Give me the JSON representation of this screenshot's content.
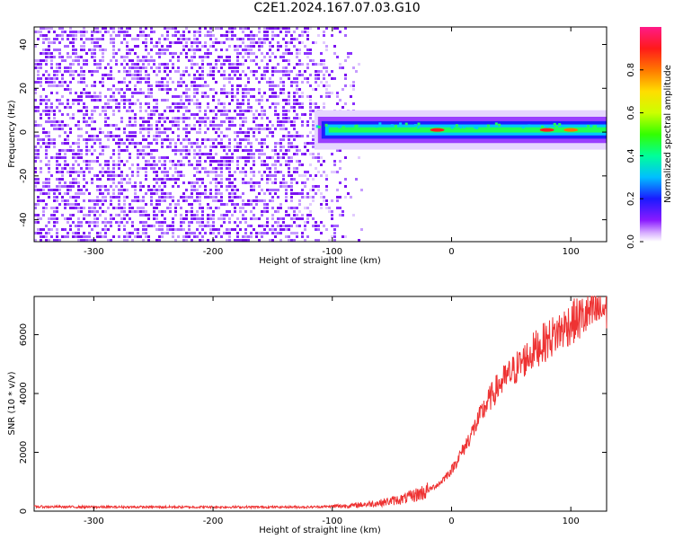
{
  "title": "C2E1.2024.167.07.03.G10",
  "chart_data": [
    {
      "type": "heatmap",
      "xlabel": "Height of straight line (km)",
      "ylabel": "Frequency (Hz)",
      "xlim": [
        -350,
        130
      ],
      "ylim": [
        -50,
        48
      ],
      "x_ticks": [
        -300,
        -200,
        -100,
        0,
        100
      ],
      "y_ticks": [
        -40,
        -20,
        0,
        20,
        40
      ],
      "grid": false,
      "colorbar": {
        "label": "Normalized spectral amplitude",
        "range": [
          0,
          1
        ],
        "ticks": [
          0.0,
          0.2,
          0.4,
          0.6,
          0.8
        ],
        "colormap": "hsv-rainbow"
      },
      "description_of_marks": {
        "noise_region_x": [
          -350,
          -75
        ],
        "tone_band_x": [
          -115,
          130
        ],
        "tone_frequency_hz": 1
      }
    },
    {
      "type": "line",
      "xlabel": "Height of straight line (km)",
      "ylabel": "SNR (10 * v/v)",
      "xlim": [
        -350,
        130
      ],
      "ylim": [
        0,
        7300
      ],
      "x_ticks": [
        -300,
        -200,
        -100,
        0,
        100
      ],
      "y_ticks": [
        0,
        2000,
        4000,
        6000
      ],
      "grid": false,
      "series": [
        {
          "color": "#ee3333",
          "x": [
            -350,
            -300,
            -250,
            -200,
            -150,
            -120,
            -100,
            -80,
            -60,
            -40,
            -30,
            -20,
            -10,
            0,
            10,
            20,
            30,
            40,
            50,
            60,
            70,
            80,
            90,
            100,
            110,
            120,
            130
          ],
          "values": [
            150,
            140,
            140,
            140,
            140,
            140,
            160,
            200,
            280,
            420,
            550,
            700,
            950,
            1400,
            2100,
            2900,
            3700,
            4300,
            4700,
            5100,
            5500,
            5800,
            6100,
            6400,
            6600,
            6800,
            6900
          ]
        }
      ]
    }
  ]
}
